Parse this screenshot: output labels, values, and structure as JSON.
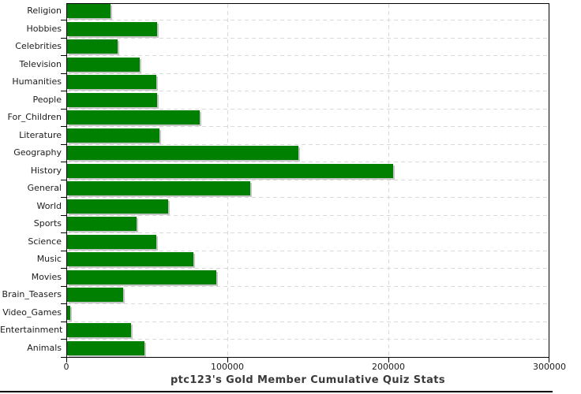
{
  "chart_data": {
    "type": "bar",
    "orientation": "horizontal",
    "title": "ptc123's Gold Member Cumulative Quiz Stats",
    "categories": [
      "Religion",
      "Hobbies",
      "Celebrities",
      "Television",
      "Humanities",
      "People",
      "For_Children",
      "Literature",
      "Geography",
      "History",
      "General",
      "World",
      "Sports",
      "Science",
      "Music",
      "Movies",
      "Brain_Teasers",
      "Video_Games",
      "Entertainment",
      "Animals"
    ],
    "values": [
      27500,
      56500,
      32000,
      45500,
      56000,
      56500,
      83000,
      58000,
      144000,
      203000,
      114000,
      63000,
      43500,
      56000,
      79000,
      93000,
      35500,
      2500,
      40000,
      48500
    ],
    "xlabel": "",
    "ylabel": "",
    "xlim": [
      0,
      300000
    ],
    "xticks": [
      0,
      100000,
      200000,
      300000
    ],
    "xtick_labels": [
      "0",
      "100000",
      "200000",
      "300000"
    ],
    "grid": true,
    "legend": false,
    "colors": {
      "bar": "#008000",
      "bar_shadow": "#c6c6c6",
      "grid": "#d9d9d9",
      "axis": "#000000",
      "title_text": "#3a3a3a",
      "label_text": "#1c1c1c"
    }
  }
}
